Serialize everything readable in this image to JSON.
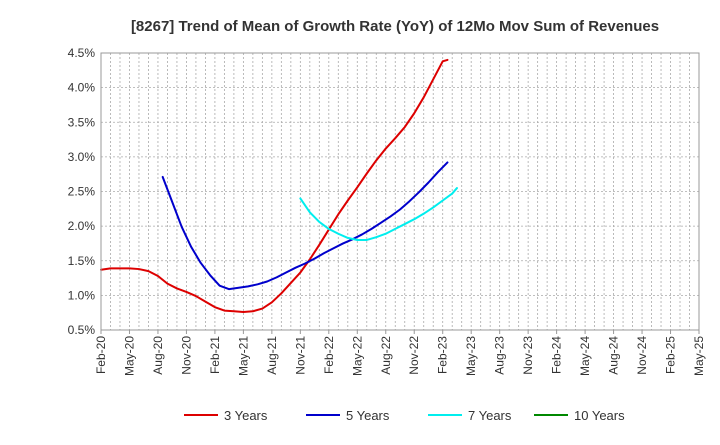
{
  "chart_data": {
    "type": "line",
    "title": "[8267]  Trend of Mean of Growth Rate (YoY) of 12Mo Mov Sum of Revenues",
    "xlabel": "",
    "ylabel": "",
    "ylim": [
      0.5,
      4.5
    ],
    "y_ticks": [
      "0.5%",
      "1.0%",
      "1.5%",
      "2.0%",
      "2.5%",
      "3.0%",
      "3.5%",
      "4.0%",
      "4.5%"
    ],
    "x_start": "Feb-20",
    "x_ticks": [
      "Feb-20",
      "May-20",
      "Aug-20",
      "Nov-20",
      "Feb-21",
      "May-21",
      "Aug-21",
      "Nov-21",
      "Feb-22",
      "May-22",
      "Aug-22",
      "Nov-22",
      "Feb-23",
      "May-23",
      "Aug-23",
      "Nov-23",
      "Feb-24",
      "May-24",
      "Aug-24",
      "Nov-24",
      "Feb-25",
      "May-25"
    ],
    "grid": true,
    "legend_position": "bottom",
    "series": [
      {
        "name": "3 Years",
        "color": "#dd0000",
        "points": [
          [
            0,
            1.37
          ],
          [
            2,
            1.39
          ],
          [
            4,
            1.39
          ],
          [
            6,
            1.39
          ],
          [
            8,
            1.38
          ],
          [
            10,
            1.35
          ],
          [
            12,
            1.28
          ],
          [
            14,
            1.17
          ],
          [
            16,
            1.1
          ],
          [
            18,
            1.05
          ],
          [
            20,
            0.99
          ],
          [
            22,
            0.91
          ],
          [
            24,
            0.83
          ],
          [
            26,
            0.78
          ],
          [
            28,
            0.77
          ],
          [
            30,
            0.76
          ],
          [
            32,
            0.77
          ],
          [
            34,
            0.81
          ],
          [
            36,
            0.9
          ],
          [
            38,
            1.03
          ],
          [
            40,
            1.18
          ],
          [
            42,
            1.33
          ],
          [
            44,
            1.52
          ],
          [
            46,
            1.73
          ],
          [
            48,
            1.95
          ],
          [
            50,
            2.17
          ],
          [
            52,
            2.37
          ],
          [
            54,
            2.56
          ],
          [
            56,
            2.76
          ],
          [
            58,
            2.95
          ],
          [
            60,
            3.12
          ],
          [
            62,
            3.27
          ],
          [
            64,
            3.43
          ],
          [
            66,
            3.63
          ],
          [
            68,
            3.86
          ],
          [
            70,
            4.12
          ],
          [
            72,
            4.38
          ],
          [
            73,
            4.4
          ]
        ]
      },
      {
        "name": "5 Years",
        "color": "#0000cc",
        "points": [
          [
            13,
            2.71
          ],
          [
            15,
            2.35
          ],
          [
            17,
            1.99
          ],
          [
            19,
            1.7
          ],
          [
            21,
            1.47
          ],
          [
            23,
            1.29
          ],
          [
            25,
            1.14
          ],
          [
            27,
            1.09
          ],
          [
            29,
            1.11
          ],
          [
            31,
            1.13
          ],
          [
            33,
            1.16
          ],
          [
            35,
            1.2
          ],
          [
            37,
            1.26
          ],
          [
            39,
            1.33
          ],
          [
            41,
            1.4
          ],
          [
            43,
            1.46
          ],
          [
            45,
            1.53
          ],
          [
            47,
            1.61
          ],
          [
            49,
            1.68
          ],
          [
            51,
            1.75
          ],
          [
            53,
            1.81
          ],
          [
            55,
            1.88
          ],
          [
            57,
            1.96
          ],
          [
            59,
            2.05
          ],
          [
            61,
            2.14
          ],
          [
            63,
            2.24
          ],
          [
            65,
            2.36
          ],
          [
            67,
            2.49
          ],
          [
            69,
            2.63
          ],
          [
            71,
            2.78
          ],
          [
            73,
            2.92
          ]
        ]
      },
      {
        "name": "7 Years",
        "color": "#00eeee",
        "points": [
          [
            42,
            2.4
          ],
          [
            44,
            2.2
          ],
          [
            46,
            2.06
          ],
          [
            48,
            1.96
          ],
          [
            50,
            1.89
          ],
          [
            52,
            1.83
          ],
          [
            54,
            1.8
          ],
          [
            56,
            1.8
          ],
          [
            58,
            1.84
          ],
          [
            60,
            1.89
          ],
          [
            62,
            1.96
          ],
          [
            64,
            2.03
          ],
          [
            66,
            2.1
          ],
          [
            68,
            2.18
          ],
          [
            70,
            2.27
          ],
          [
            72,
            2.37
          ],
          [
            74,
            2.47
          ],
          [
            75,
            2.55
          ]
        ]
      },
      {
        "name": "10 Years",
        "color": "#008800",
        "points": []
      }
    ]
  }
}
